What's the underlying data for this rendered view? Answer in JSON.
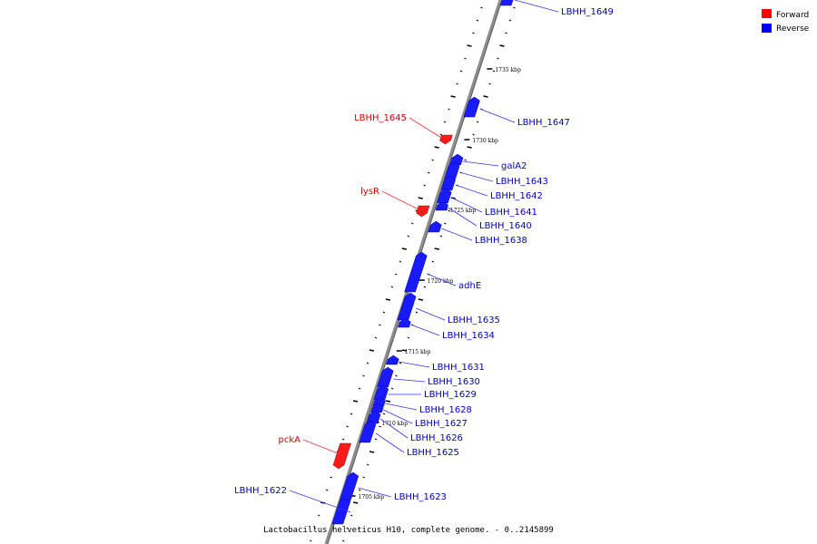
{
  "legend": {
    "items": [
      {
        "label": "Forward",
        "color": "#ff0000"
      },
      {
        "label": "Reverse",
        "color": "#0000ff"
      }
    ]
  },
  "caption": "Lactobacillus helveticus H10, complete genome. - 0..2145899",
  "ticks": [
    "1735 kbp",
    "1730 kbp",
    "1725 kbp",
    "1720 kbp",
    "1715 kbp",
    "1710 kbp",
    "1705 kbp"
  ],
  "genes": [
    {
      "name": "LBHH_1649",
      "strand": "reverse"
    },
    {
      "name": "LBHH_1647",
      "strand": "reverse"
    },
    {
      "name": "LBHH_1645",
      "strand": "forward"
    },
    {
      "name": "galA2",
      "strand": "reverse"
    },
    {
      "name": "LBHH_1643",
      "strand": "reverse"
    },
    {
      "name": "LBHH_1642",
      "strand": "reverse"
    },
    {
      "name": "lysR",
      "strand": "forward"
    },
    {
      "name": "LBHH_1641",
      "strand": "reverse"
    },
    {
      "name": "LBHH_1640",
      "strand": "reverse"
    },
    {
      "name": "LBHH_1638",
      "strand": "reverse"
    },
    {
      "name": "adhE",
      "strand": "reverse"
    },
    {
      "name": "LBHH_1635",
      "strand": "reverse"
    },
    {
      "name": "LBHH_1634",
      "strand": "reverse"
    },
    {
      "name": "LBHH_1631",
      "strand": "reverse"
    },
    {
      "name": "LBHH_1630",
      "strand": "reverse"
    },
    {
      "name": "LBHH_1629",
      "strand": "reverse"
    },
    {
      "name": "LBHH_1628",
      "strand": "reverse"
    },
    {
      "name": "LBHH_1627",
      "strand": "reverse"
    },
    {
      "name": "LBHH_1626",
      "strand": "reverse"
    },
    {
      "name": "LBHH_1625",
      "strand": "reverse"
    },
    {
      "name": "pckA",
      "strand": "forward"
    },
    {
      "name": "LBHH_1622",
      "strand": "reverse"
    },
    {
      "name": "LBHH_1623",
      "strand": "reverse"
    }
  ]
}
